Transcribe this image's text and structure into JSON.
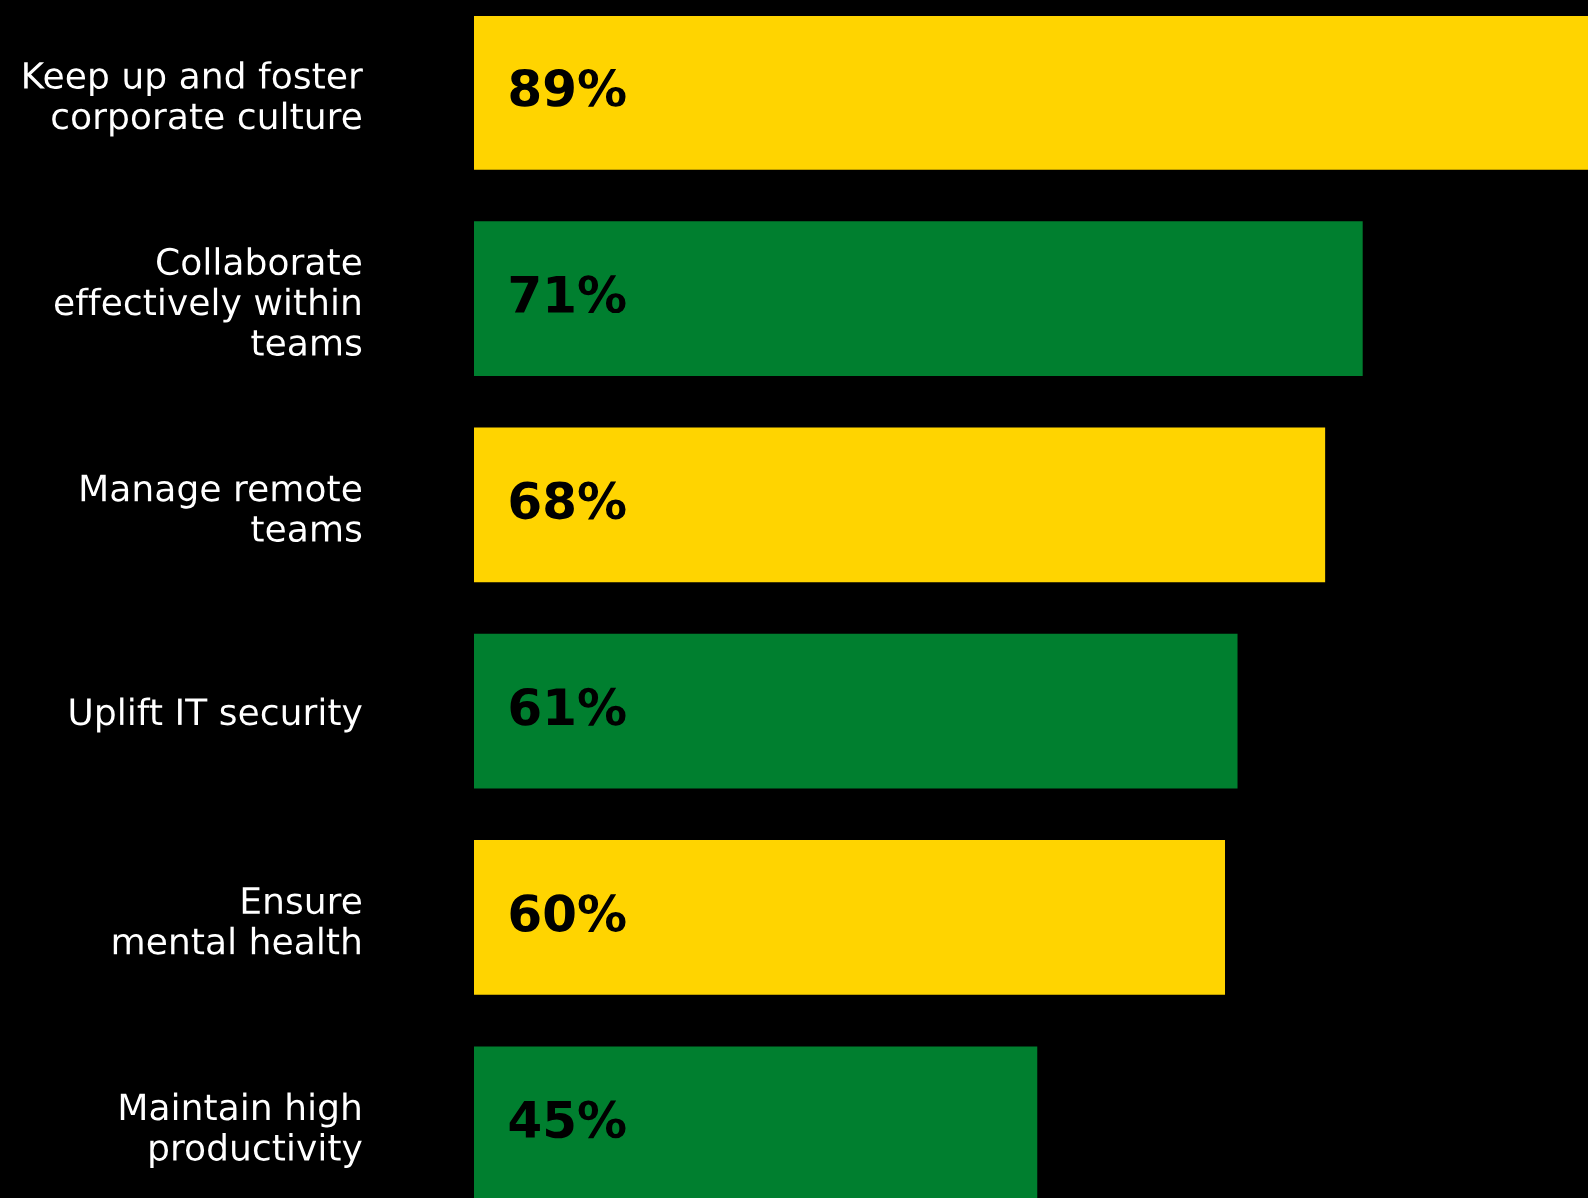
{
  "chart_data": {
    "type": "bar",
    "orientation": "horizontal",
    "categories": [
      "Keep up and foster\ncorporate culture",
      "Collaborate\neffectively within\nteams",
      "Manage remote\nteams",
      "Uplift IT security",
      "Ensure\nmental health",
      "Maintain high\nproductivity"
    ],
    "values": [
      89,
      71,
      68,
      61,
      60,
      45
    ],
    "colors": [
      "#ffd400",
      "#007f2f",
      "#ffd400",
      "#007f2f",
      "#ffd400",
      "#007f2f"
    ],
    "value_labels": [
      "89%",
      "71%",
      "68%",
      "61%",
      "60%",
      "45%"
    ],
    "xlim": [
      0,
      89
    ],
    "grid": false,
    "legend": false,
    "tick_labels": "y"
  }
}
